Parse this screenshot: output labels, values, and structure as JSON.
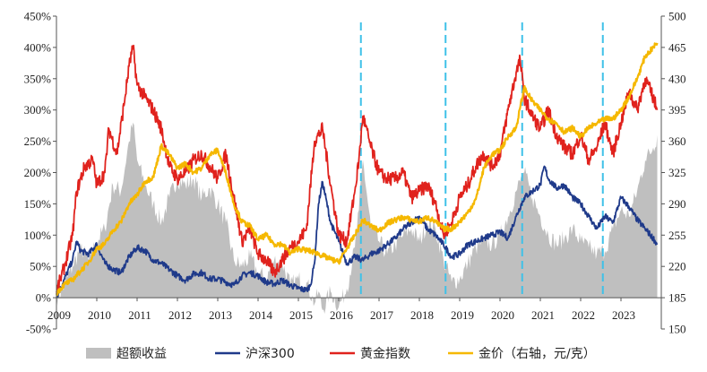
{
  "chart_data": {
    "type": "line",
    "x_axis": {
      "min": 2009.0,
      "max": 2024.0,
      "ticks": [
        2009,
        2010,
        2011,
        2012,
        2013,
        2014,
        2015,
        2016,
        2017,
        2018,
        2019,
        2020,
        2021,
        2022,
        2023
      ],
      "tick_labels": [
        "2009",
        "2010",
        "2011",
        "2012",
        "2013",
        "2014",
        "2015",
        "2016",
        "2017",
        "2018",
        "2019",
        "2020",
        "2021",
        "2022",
        "2023"
      ]
    },
    "y_left": {
      "min": -50,
      "max": 450,
      "ticks": [
        -50,
        0,
        50,
        100,
        150,
        200,
        250,
        300,
        350,
        400,
        450
      ],
      "tick_labels": [
        "-50%",
        "0%",
        "50%",
        "100%",
        "150%",
        "200%",
        "250%",
        "300%",
        "350%",
        "400%",
        "450%"
      ]
    },
    "y_right": {
      "min": 150,
      "max": 500,
      "ticks": [
        150,
        185,
        220,
        255,
        290,
        325,
        360,
        395,
        430,
        465,
        500
      ],
      "tick_labels": [
        "150",
        "185",
        "220",
        "255",
        "290",
        "325",
        "360",
        "395",
        "430",
        "465",
        "500"
      ]
    },
    "vlines": [
      2016.55,
      2018.65,
      2020.55,
      2022.55
    ],
    "vline_color": "#3fc1e8",
    "series": [
      {
        "name": "超额收益",
        "type": "area",
        "axis": "left",
        "color": "#bfbfbf",
        "x": [
          2009.0,
          2009.2,
          2009.4,
          2009.6,
          2009.8,
          2010.0,
          2010.2,
          2010.4,
          2010.6,
          2010.8,
          2010.9,
          2011.0,
          2011.2,
          2011.4,
          2011.6,
          2011.8,
          2012.0,
          2012.2,
          2012.4,
          2012.6,
          2012.8,
          2013.0,
          2013.2,
          2013.4,
          2013.6,
          2013.8,
          2014.0,
          2014.2,
          2014.4,
          2014.6,
          2014.8,
          2015.0,
          2015.2,
          2015.4,
          2015.5,
          2015.6,
          2015.8,
          2016.0,
          2016.2,
          2016.4,
          2016.5,
          2016.6,
          2016.8,
          2017.0,
          2017.2,
          2017.4,
          2017.6,
          2017.8,
          2018.0,
          2018.2,
          2018.4,
          2018.6,
          2018.8,
          2019.0,
          2019.2,
          2019.4,
          2019.6,
          2019.8,
          2020.0,
          2020.2,
          2020.4,
          2020.6,
          2020.8,
          2021.0,
          2021.2,
          2021.4,
          2021.6,
          2021.8,
          2022.0,
          2022.2,
          2022.4,
          2022.6,
          2022.8,
          2023.0,
          2023.2,
          2023.4,
          2023.6,
          2023.8,
          2023.9
        ],
        "values": [
          0,
          20,
          50,
          80,
          60,
          90,
          110,
          180,
          170,
          250,
          280,
          220,
          180,
          150,
          120,
          160,
          190,
          180,
          190,
          160,
          175,
          150,
          120,
          60,
          50,
          65,
          40,
          30,
          60,
          55,
          20,
          30,
          25,
          -10,
          10,
          -20,
          10,
          -15,
          15,
          80,
          140,
          220,
          110,
          90,
          70,
          85,
          100,
          110,
          90,
          120,
          110,
          60,
          25,
          30,
          55,
          80,
          90,
          85,
          100,
          130,
          170,
          200,
          160,
          130,
          100,
          85,
          95,
          110,
          90,
          80,
          70,
          75,
          110,
          140,
          130,
          170,
          220,
          240,
          260
        ]
      },
      {
        "name": "沪深300",
        "type": "line",
        "axis": "left",
        "color": "#1f3a8a",
        "x": [
          2009.0,
          2009.2,
          2009.4,
          2009.5,
          2009.6,
          2009.8,
          2010.0,
          2010.2,
          2010.4,
          2010.6,
          2010.8,
          2011.0,
          2011.2,
          2011.4,
          2011.6,
          2011.8,
          2012.0,
          2012.2,
          2012.4,
          2012.6,
          2012.8,
          2013.0,
          2013.2,
          2013.4,
          2013.6,
          2013.8,
          2014.0,
          2014.2,
          2014.4,
          2014.6,
          2014.8,
          2015.0,
          2015.2,
          2015.3,
          2015.4,
          2015.5,
          2015.6,
          2015.8,
          2016.0,
          2016.2,
          2016.4,
          2016.6,
          2016.8,
          2017.0,
          2017.2,
          2017.4,
          2017.6,
          2017.8,
          2018.0,
          2018.2,
          2018.4,
          2018.6,
          2018.8,
          2019.0,
          2019.2,
          2019.4,
          2019.6,
          2019.8,
          2020.0,
          2020.2,
          2020.4,
          2020.6,
          2020.8,
          2021.0,
          2021.1,
          2021.2,
          2021.4,
          2021.6,
          2021.8,
          2022.0,
          2022.2,
          2022.4,
          2022.6,
          2022.8,
          2023.0,
          2023.2,
          2023.4,
          2023.6,
          2023.8,
          2023.9
        ],
        "values": [
          0,
          30,
          60,
          90,
          75,
          70,
          85,
          55,
          45,
          40,
          65,
          80,
          75,
          60,
          55,
          45,
          35,
          28,
          38,
          40,
          30,
          30,
          25,
          20,
          35,
          40,
          35,
          25,
          22,
          28,
          20,
          15,
          12,
          20,
          55,
          150,
          185,
          120,
          90,
          55,
          65,
          60,
          70,
          75,
          85,
          95,
          110,
          120,
          130,
          110,
          100,
          85,
          65,
          70,
          85,
          90,
          95,
          100,
          105,
          95,
          130,
          160,
          170,
          180,
          210,
          190,
          175,
          180,
          160,
          150,
          130,
          110,
          130,
          120,
          160,
          145,
          125,
          110,
          95,
          85
        ]
      },
      {
        "name": "黄金指数",
        "type": "line",
        "axis": "left",
        "color": "#e0221d",
        "x": [
          2009.0,
          2009.1,
          2009.2,
          2009.4,
          2009.5,
          2009.7,
          2009.9,
          2010.0,
          2010.2,
          2010.3,
          2010.5,
          2010.7,
          2010.8,
          2010.9,
          2011.0,
          2011.2,
          2011.4,
          2011.6,
          2011.8,
          2012.0,
          2012.2,
          2012.4,
          2012.6,
          2012.8,
          2013.0,
          2013.2,
          2013.4,
          2013.6,
          2013.8,
          2014.0,
          2014.2,
          2014.4,
          2014.6,
          2014.8,
          2015.0,
          2015.2,
          2015.4,
          2015.6,
          2015.8,
          2016.0,
          2016.2,
          2016.4,
          2016.5,
          2016.6,
          2016.8,
          2017.0,
          2017.2,
          2017.4,
          2017.6,
          2017.8,
          2018.0,
          2018.2,
          2018.4,
          2018.6,
          2018.8,
          2019.0,
          2019.2,
          2019.4,
          2019.6,
          2019.8,
          2020.0,
          2020.2,
          2020.4,
          2020.5,
          2020.6,
          2020.8,
          2021.0,
          2021.2,
          2021.4,
          2021.6,
          2021.8,
          2022.0,
          2022.2,
          2022.4,
          2022.6,
          2022.8,
          2023.0,
          2023.2,
          2023.4,
          2023.6,
          2023.8,
          2023.9
        ],
        "values": [
          10,
          30,
          50,
          100,
          170,
          210,
          220,
          180,
          200,
          270,
          230,
          320,
          370,
          400,
          340,
          320,
          300,
          270,
          210,
          190,
          200,
          220,
          230,
          210,
          190,
          230,
          160,
          90,
          110,
          70,
          60,
          40,
          60,
          80,
          90,
          110,
          250,
          270,
          180,
          100,
          90,
          170,
          220,
          290,
          240,
          200,
          190,
          190,
          200,
          160,
          170,
          180,
          150,
          100,
          120,
          160,
          180,
          210,
          230,
          210,
          230,
          300,
          360,
          380,
          320,
          290,
          270,
          300,
          260,
          240,
          230,
          260,
          220,
          240,
          280,
          230,
          280,
          330,
          300,
          350,
          320,
          300
        ]
      },
      {
        "name": "金价（右轴，元/克）",
        "type": "line",
        "axis": "right",
        "color": "#f5b800",
        "x": [
          2009.0,
          2009.2,
          2009.4,
          2009.6,
          2009.8,
          2010.0,
          2010.2,
          2010.4,
          2010.6,
          2010.8,
          2011.0,
          2011.2,
          2011.4,
          2011.6,
          2011.8,
          2012.0,
          2012.2,
          2012.4,
          2012.6,
          2012.8,
          2013.0,
          2013.2,
          2013.4,
          2013.6,
          2013.8,
          2014.0,
          2014.2,
          2014.4,
          2014.6,
          2014.8,
          2015.0,
          2015.2,
          2015.4,
          2015.6,
          2015.8,
          2016.0,
          2016.2,
          2016.4,
          2016.6,
          2016.8,
          2017.0,
          2017.2,
          2017.4,
          2017.6,
          2017.8,
          2018.0,
          2018.2,
          2018.4,
          2018.6,
          2018.8,
          2019.0,
          2019.2,
          2019.4,
          2019.6,
          2019.8,
          2020.0,
          2020.2,
          2020.4,
          2020.6,
          2020.8,
          2021.0,
          2021.2,
          2021.4,
          2021.6,
          2021.8,
          2022.0,
          2022.2,
          2022.4,
          2022.6,
          2022.8,
          2023.0,
          2023.2,
          2023.4,
          2023.6,
          2023.8,
          2023.9
        ],
        "values": [
          190,
          200,
          205,
          215,
          225,
          240,
          245,
          260,
          270,
          290,
          300,
          315,
          320,
          355,
          345,
          330,
          335,
          325,
          330,
          345,
          350,
          325,
          290,
          270,
          265,
          250,
          255,
          245,
          245,
          235,
          240,
          238,
          236,
          232,
          228,
          225,
          240,
          255,
          272,
          265,
          260,
          268,
          272,
          275,
          272,
          270,
          275,
          270,
          262,
          262,
          270,
          280,
          295,
          330,
          345,
          350,
          365,
          375,
          420,
          405,
          395,
          385,
          380,
          370,
          375,
          365,
          375,
          380,
          385,
          385,
          395,
          410,
          430,
          455,
          465,
          470
        ]
      }
    ],
    "legend": {
      "position": "bottom",
      "items": [
        {
          "label": "超额收益",
          "color": "#bfbfbf",
          "shape": "block"
        },
        {
          "label": "沪深300",
          "color": "#1f3a8a",
          "shape": "line"
        },
        {
          "label": "黄金指数",
          "color": "#e0221d",
          "shape": "line"
        },
        {
          "label": "金价（右轴，元/克）",
          "color": "#f5b800",
          "shape": "line"
        }
      ]
    }
  }
}
